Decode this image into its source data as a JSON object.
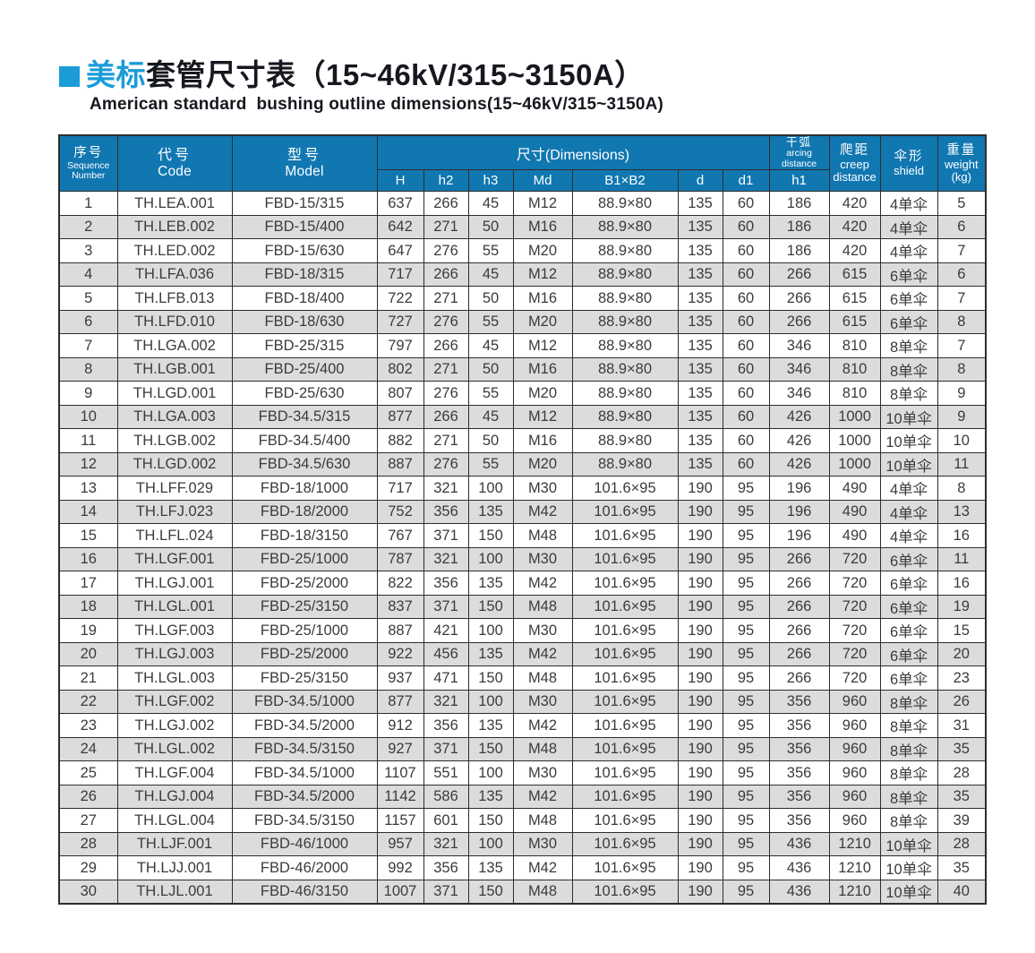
{
  "colors": {
    "accent": "#1b9cd8",
    "header_bg": "#1177b1",
    "alt_row": "#dcdcdc",
    "border": "#2d2d2d"
  },
  "title": {
    "zh_highlight": "美标",
    "zh_rest": "套管尺寸表（15~46kV/315~3150A）",
    "subtitle_en": "American standard  bushing outline dimensions(15~46kV/315~3150A)"
  },
  "table": {
    "head": {
      "seq": {
        "zh": "序号",
        "en1": "Sequence",
        "en2": "Number"
      },
      "code": {
        "zh": "代号",
        "en": "Code"
      },
      "model": {
        "zh": "型号",
        "en": "Model"
      },
      "dims": {
        "label": "尺寸(Dimensions)"
      },
      "sub": {
        "H": "H",
        "h2": "h2",
        "h3": "h3",
        "Md": "Md",
        "B1B2": "B1×B2",
        "d": "d",
        "d1": "d1",
        "h1": "h1"
      },
      "arcing": {
        "zh": "干弧",
        "en1": "arcing",
        "en2": "distance"
      },
      "creep": {
        "zh": "爬距",
        "en1": "creep",
        "en2": "distance"
      },
      "shield": {
        "zh": "伞形",
        "en": "shield"
      },
      "weight": {
        "zh": "重量",
        "en": "weight",
        "unit": "(kg)"
      }
    },
    "rows": [
      [
        "1",
        "TH.LEA.001",
        "FBD-15/315",
        "637",
        "266",
        "45",
        "M12",
        "88.9×80",
        "135",
        "60",
        "186",
        "420",
        "4单伞",
        "5"
      ],
      [
        "2",
        "TH.LEB.002",
        "FBD-15/400",
        "642",
        "271",
        "50",
        "M16",
        "88.9×80",
        "135",
        "60",
        "186",
        "420",
        "4单伞",
        "6"
      ],
      [
        "3",
        "TH.LED.002",
        "FBD-15/630",
        "647",
        "276",
        "55",
        "M20",
        "88.9×80",
        "135",
        "60",
        "186",
        "420",
        "4单伞",
        "7"
      ],
      [
        "4",
        "TH.LFA.036",
        "FBD-18/315",
        "717",
        "266",
        "45",
        "M12",
        "88.9×80",
        "135",
        "60",
        "266",
        "615",
        "6单伞",
        "6"
      ],
      [
        "5",
        "TH.LFB.013",
        "FBD-18/400",
        "722",
        "271",
        "50",
        "M16",
        "88.9×80",
        "135",
        "60",
        "266",
        "615",
        "6单伞",
        "7"
      ],
      [
        "6",
        "TH.LFD.010",
        "FBD-18/630",
        "727",
        "276",
        "55",
        "M20",
        "88.9×80",
        "135",
        "60",
        "266",
        "615",
        "6单伞",
        "8"
      ],
      [
        "7",
        "TH.LGA.002",
        "FBD-25/315",
        "797",
        "266",
        "45",
        "M12",
        "88.9×80",
        "135",
        "60",
        "346",
        "810",
        "8单伞",
        "7"
      ],
      [
        "8",
        "TH.LGB.001",
        "FBD-25/400",
        "802",
        "271",
        "50",
        "M16",
        "88.9×80",
        "135",
        "60",
        "346",
        "810",
        "8单伞",
        "8"
      ],
      [
        "9",
        "TH.LGD.001",
        "FBD-25/630",
        "807",
        "276",
        "55",
        "M20",
        "88.9×80",
        "135",
        "60",
        "346",
        "810",
        "8单伞",
        "9"
      ],
      [
        "10",
        "TH.LGA.003",
        "FBD-34.5/315",
        "877",
        "266",
        "45",
        "M12",
        "88.9×80",
        "135",
        "60",
        "426",
        "1000",
        "10单伞",
        "9"
      ],
      [
        "11",
        "TH.LGB.002",
        "FBD-34.5/400",
        "882",
        "271",
        "50",
        "M16",
        "88.9×80",
        "135",
        "60",
        "426",
        "1000",
        "10单伞",
        "10"
      ],
      [
        "12",
        "TH.LGD.002",
        "FBD-34.5/630",
        "887",
        "276",
        "55",
        "M20",
        "88.9×80",
        "135",
        "60",
        "426",
        "1000",
        "10单伞",
        "11"
      ],
      [
        "13",
        "TH.LFF.029",
        "FBD-18/1000",
        "717",
        "321",
        "100",
        "M30",
        "101.6×95",
        "190",
        "95",
        "196",
        "490",
        "4单伞",
        "8"
      ],
      [
        "14",
        "TH.LFJ.023",
        "FBD-18/2000",
        "752",
        "356",
        "135",
        "M42",
        "101.6×95",
        "190",
        "95",
        "196",
        "490",
        "4单伞",
        "13"
      ],
      [
        "15",
        "TH.LFL.024",
        "FBD-18/3150",
        "767",
        "371",
        "150",
        "M48",
        "101.6×95",
        "190",
        "95",
        "196",
        "490",
        "4单伞",
        "16"
      ],
      [
        "16",
        "TH.LGF.001",
        "FBD-25/1000",
        "787",
        "321",
        "100",
        "M30",
        "101.6×95",
        "190",
        "95",
        "266",
        "720",
        "6单伞",
        "11"
      ],
      [
        "17",
        "TH.LGJ.001",
        "FBD-25/2000",
        "822",
        "356",
        "135",
        "M42",
        "101.6×95",
        "190",
        "95",
        "266",
        "720",
        "6单伞",
        "16"
      ],
      [
        "18",
        "TH.LGL.001",
        "FBD-25/3150",
        "837",
        "371",
        "150",
        "M48",
        "101.6×95",
        "190",
        "95",
        "266",
        "720",
        "6单伞",
        "19"
      ],
      [
        "19",
        "TH.LGF.003",
        "FBD-25/1000",
        "887",
        "421",
        "100",
        "M30",
        "101.6×95",
        "190",
        "95",
        "266",
        "720",
        "6单伞",
        "15"
      ],
      [
        "20",
        "TH.LGJ.003",
        "FBD-25/2000",
        "922",
        "456",
        "135",
        "M42",
        "101.6×95",
        "190",
        "95",
        "266",
        "720",
        "6单伞",
        "20"
      ],
      [
        "21",
        "TH.LGL.003",
        "FBD-25/3150",
        "937",
        "471",
        "150",
        "M48",
        "101.6×95",
        "190",
        "95",
        "266",
        "720",
        "6单伞",
        "23"
      ],
      [
        "22",
        "TH.LGF.002",
        "FBD-34.5/1000",
        "877",
        "321",
        "100",
        "M30",
        "101.6×95",
        "190",
        "95",
        "356",
        "960",
        "8单伞",
        "26"
      ],
      [
        "23",
        "TH.LGJ.002",
        "FBD-34.5/2000",
        "912",
        "356",
        "135",
        "M42",
        "101.6×95",
        "190",
        "95",
        "356",
        "960",
        "8单伞",
        "31"
      ],
      [
        "24",
        "TH.LGL.002",
        "FBD-34.5/3150",
        "927",
        "371",
        "150",
        "M48",
        "101.6×95",
        "190",
        "95",
        "356",
        "960",
        "8单伞",
        "35"
      ],
      [
        "25",
        "TH.LGF.004",
        "FBD-34.5/1000",
        "1107",
        "551",
        "100",
        "M30",
        "101.6×95",
        "190",
        "95",
        "356",
        "960",
        "8单伞",
        "28"
      ],
      [
        "26",
        "TH.LGJ.004",
        "FBD-34.5/2000",
        "1142",
        "586",
        "135",
        "M42",
        "101.6×95",
        "190",
        "95",
        "356",
        "960",
        "8单伞",
        "35"
      ],
      [
        "27",
        "TH.LGL.004",
        "FBD-34.5/3150",
        "1157",
        "601",
        "150",
        "M48",
        "101.6×95",
        "190",
        "95",
        "356",
        "960",
        "8单伞",
        "39"
      ],
      [
        "28",
        "TH.LJF.001",
        "FBD-46/1000",
        "957",
        "321",
        "100",
        "M30",
        "101.6×95",
        "190",
        "95",
        "436",
        "1210",
        "10单伞",
        "28"
      ],
      [
        "29",
        "TH.LJJ.001",
        "FBD-46/2000",
        "992",
        "356",
        "135",
        "M42",
        "101.6×95",
        "190",
        "95",
        "436",
        "1210",
        "10单伞",
        "35"
      ],
      [
        "30",
        "TH.LJL.001",
        "FBD-46/3150",
        "1007",
        "371",
        "150",
        "M48",
        "101.6×95",
        "190",
        "95",
        "436",
        "1210",
        "10单伞",
        "40"
      ]
    ]
  }
}
